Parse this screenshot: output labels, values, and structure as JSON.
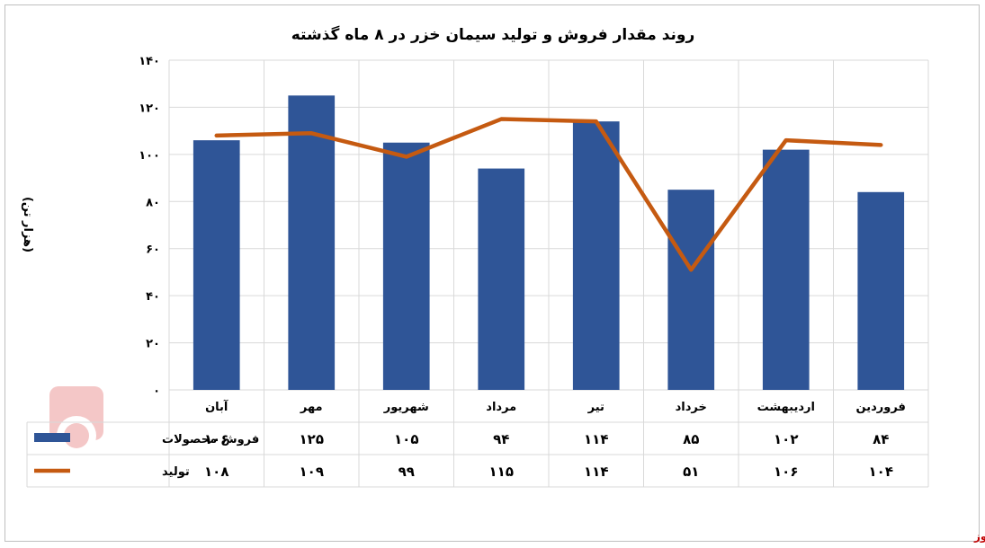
{
  "chart_data": {
    "type": "bar",
    "title": "روند مقدار فروش و تولید سیمان خزر در ۸ ماه گذشته",
    "ylabel": "(هزار تن)",
    "xlabel": "",
    "ylim": [
      0,
      140
    ],
    "yticks": [
      0,
      20,
      40,
      60,
      80,
      100,
      120,
      140
    ],
    "ytick_labels": [
      "۰",
      "۲۰",
      "۴۰",
      "۶۰",
      "۸۰",
      "۱۰۰",
      "۱۲۰",
      "۱۴۰"
    ],
    "categories": [
      "فروردین",
      "اردیبهشت",
      "خرداد",
      "تیر",
      "مرداد",
      "شهریور",
      "مهر",
      "آبان"
    ],
    "grid": true,
    "data_table": true,
    "series": [
      {
        "name": "فروش محصولات",
        "type": "bar",
        "color": "#2f5597",
        "values": [
          84,
          102,
          85,
          114,
          94,
          105,
          125,
          106
        ],
        "labels": [
          "۸۴",
          "۱۰۲",
          "۸۵",
          "۱۱۴",
          "۹۴",
          "۱۰۵",
          "۱۲۵",
          "۱۰۶"
        ]
      },
      {
        "name": "تولید",
        "type": "line",
        "color": "#c55a11",
        "values": [
          104,
          106,
          51,
          114,
          115,
          99,
          109,
          108
        ],
        "labels": [
          "۱۰۴",
          "۱۰۶",
          "۵۱",
          "۱۱۴",
          "۱۱۵",
          "۹۹",
          "۱۰۹",
          "۱۰۸"
        ]
      }
    ]
  },
  "source": "بورس نیوز"
}
